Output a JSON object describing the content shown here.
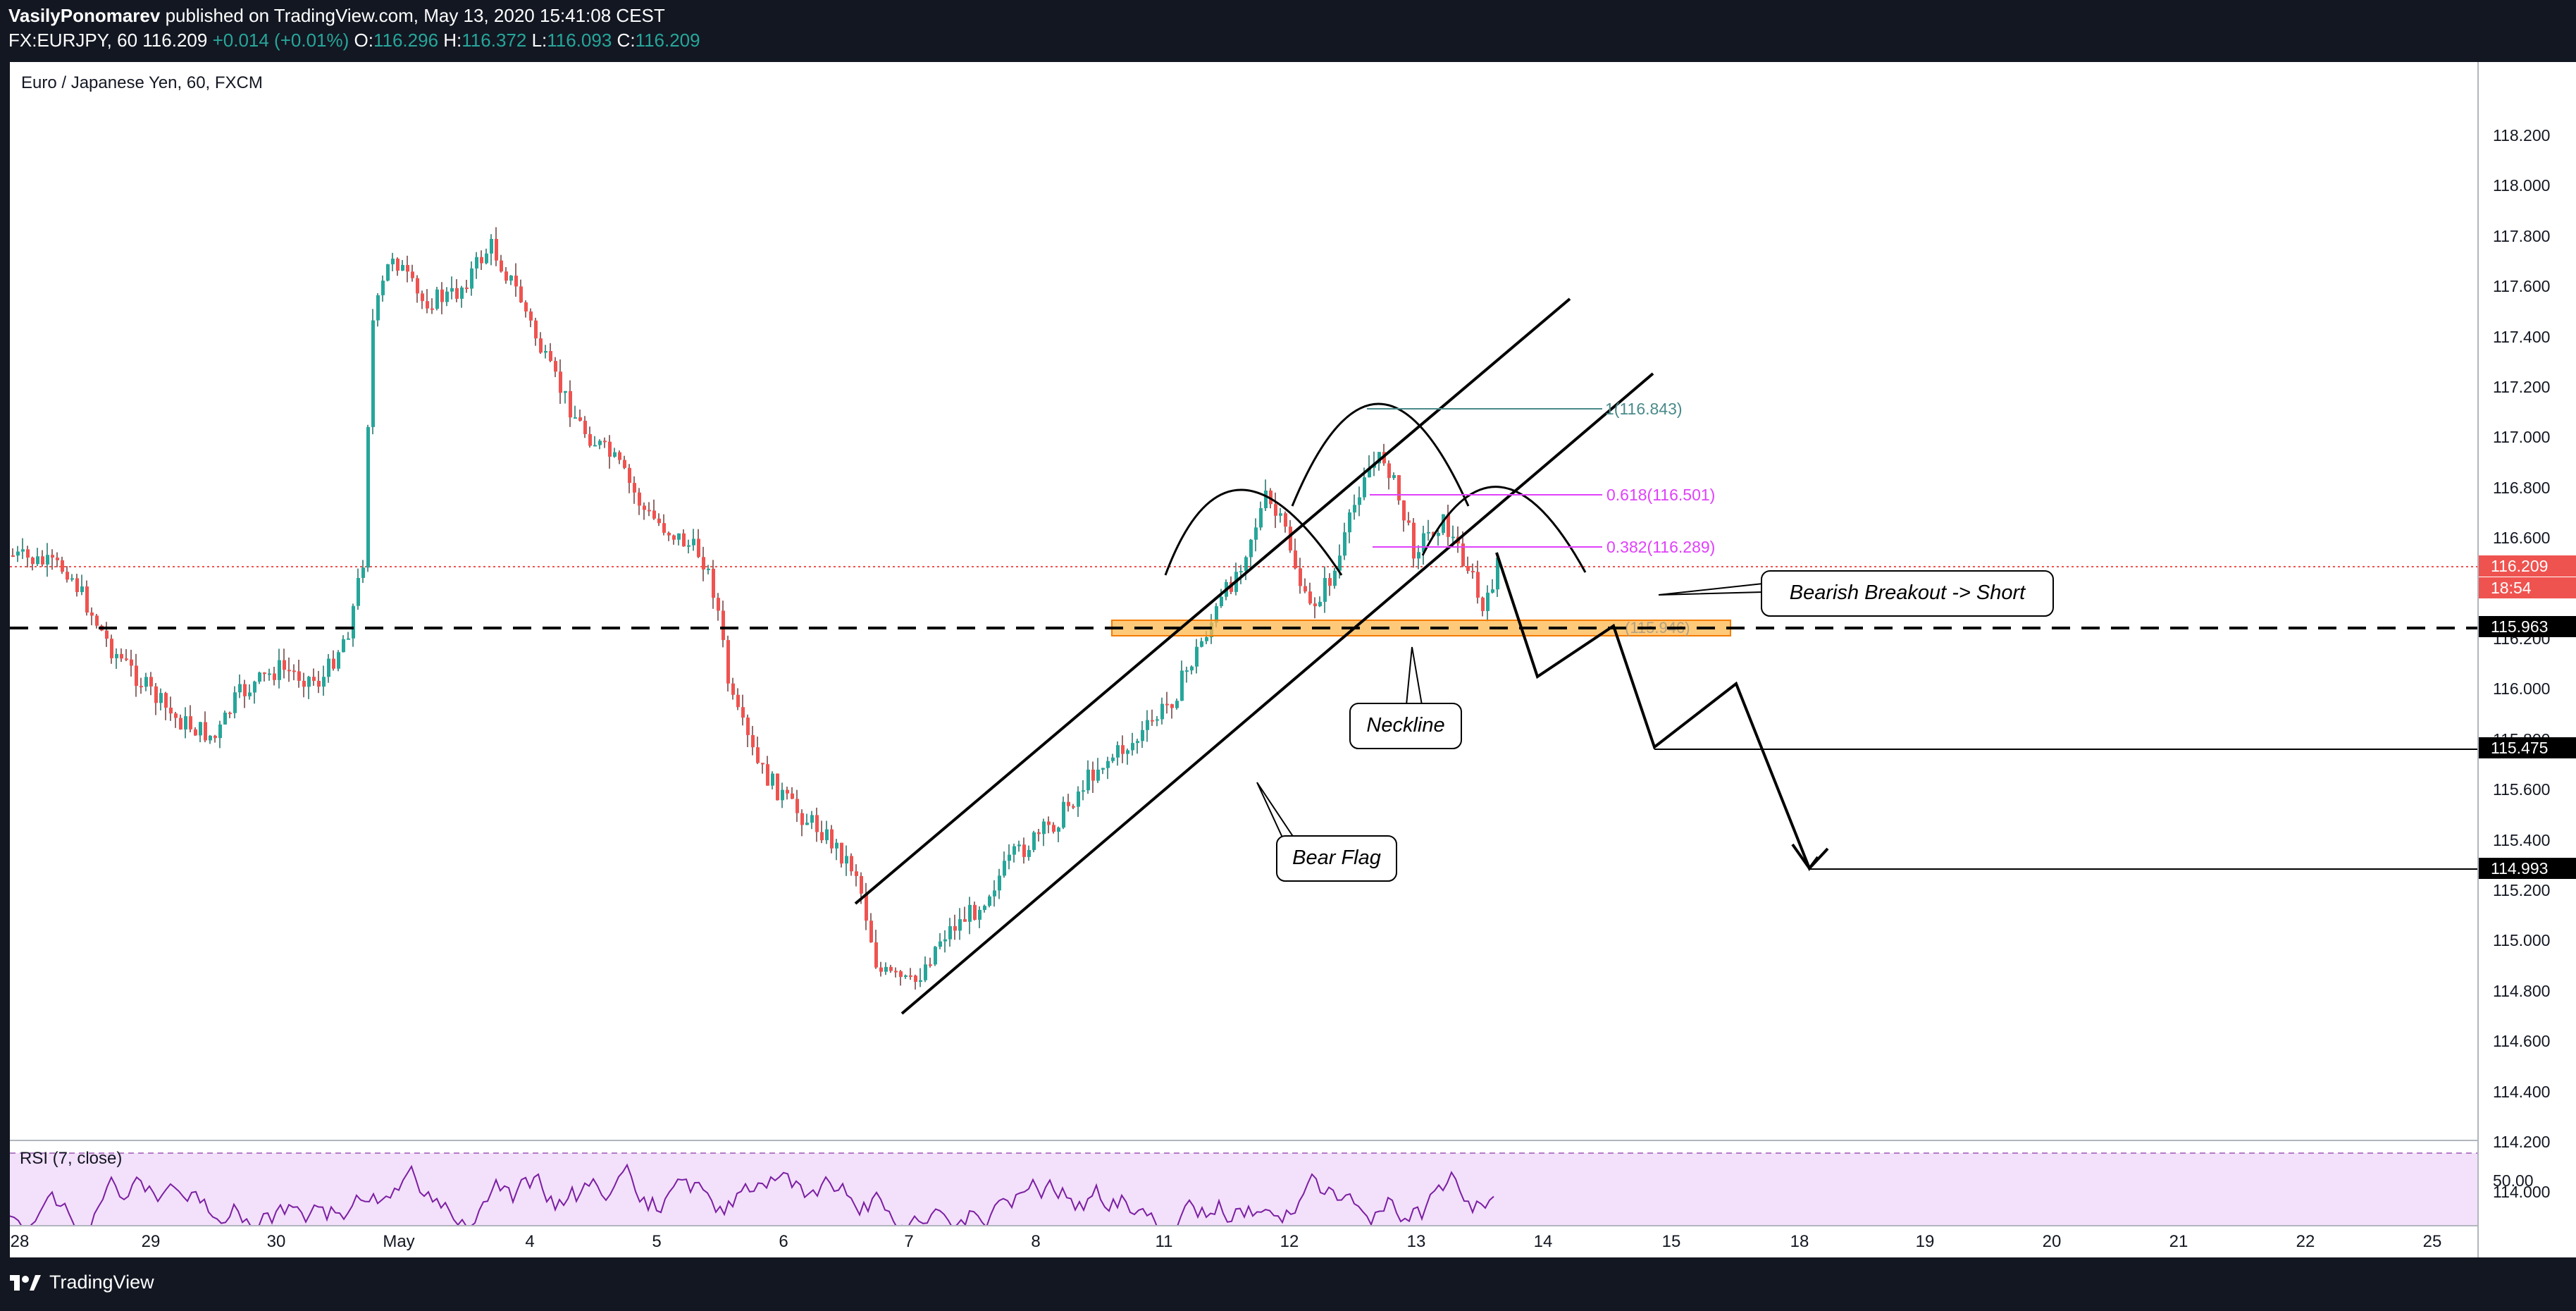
{
  "header": {
    "author": "VasilyPonomarev",
    "published": "published on TradingView.com, May 13, 2020 15:41:08 CEST",
    "symbol_line_prefix": "FX:EURJPY, 60",
    "last": "116.209",
    "change": "+0.014 (+0.01%)",
    "o_label": "O:",
    "o_val": "116.296",
    "h_label": "H:",
    "h_val": "116.372",
    "l_label": "L:",
    "l_val": "116.093",
    "c_label": "C:",
    "c_val": "116.209"
  },
  "chart": {
    "title": "Euro / Japanese Yen, 60, FXCM",
    "rsi_label": "RSI (7, close)",
    "rsi_level_label": "50.00"
  },
  "price_axis": {
    "ticks": [
      "118.200",
      "118.000",
      "117.800",
      "117.600",
      "117.400",
      "117.200",
      "117.000",
      "116.800",
      "116.600",
      "116.400",
      "116.200",
      "116.000",
      "115.800",
      "115.600",
      "115.400",
      "115.200",
      "115.000",
      "114.800",
      "114.600",
      "114.400",
      "114.200",
      "114.000"
    ],
    "last_price_badge": "116.209",
    "countdown_badge": "18:54",
    "level_badges": [
      "115.963",
      "115.475",
      "114.993"
    ]
  },
  "time_axis": {
    "ticks": [
      "28",
      "29",
      "30",
      "May",
      "4",
      "5",
      "6",
      "7",
      "8",
      "11",
      "12",
      "13",
      "14",
      "15",
      "18",
      "19",
      "20",
      "21",
      "22",
      "25"
    ]
  },
  "annotations": {
    "fib_1": "1(116.843)",
    "fib_0618": "0.618(116.501)",
    "fib_0382": "0.382(116.289)",
    "zone_label": "(115.946)",
    "callout_breakout": "Bearish Breakout -> Short",
    "callout_neckline": "Neckline",
    "callout_bearflag": "Bear Flag"
  },
  "footer": {
    "brand": "TradingView"
  },
  "colors": {
    "background": "#131722",
    "candle_up": "#26a69a",
    "candle_down": "#ef5350",
    "fib_pink": "#e040fb",
    "fib_teal": "#4a8a8a",
    "zone_fill": "#ffb74d",
    "rsi_band": "#f3e0fb",
    "rsi_line": "#7b1fa2"
  },
  "icons": {
    "footer_logo": "tradingview-logo-icon"
  }
}
